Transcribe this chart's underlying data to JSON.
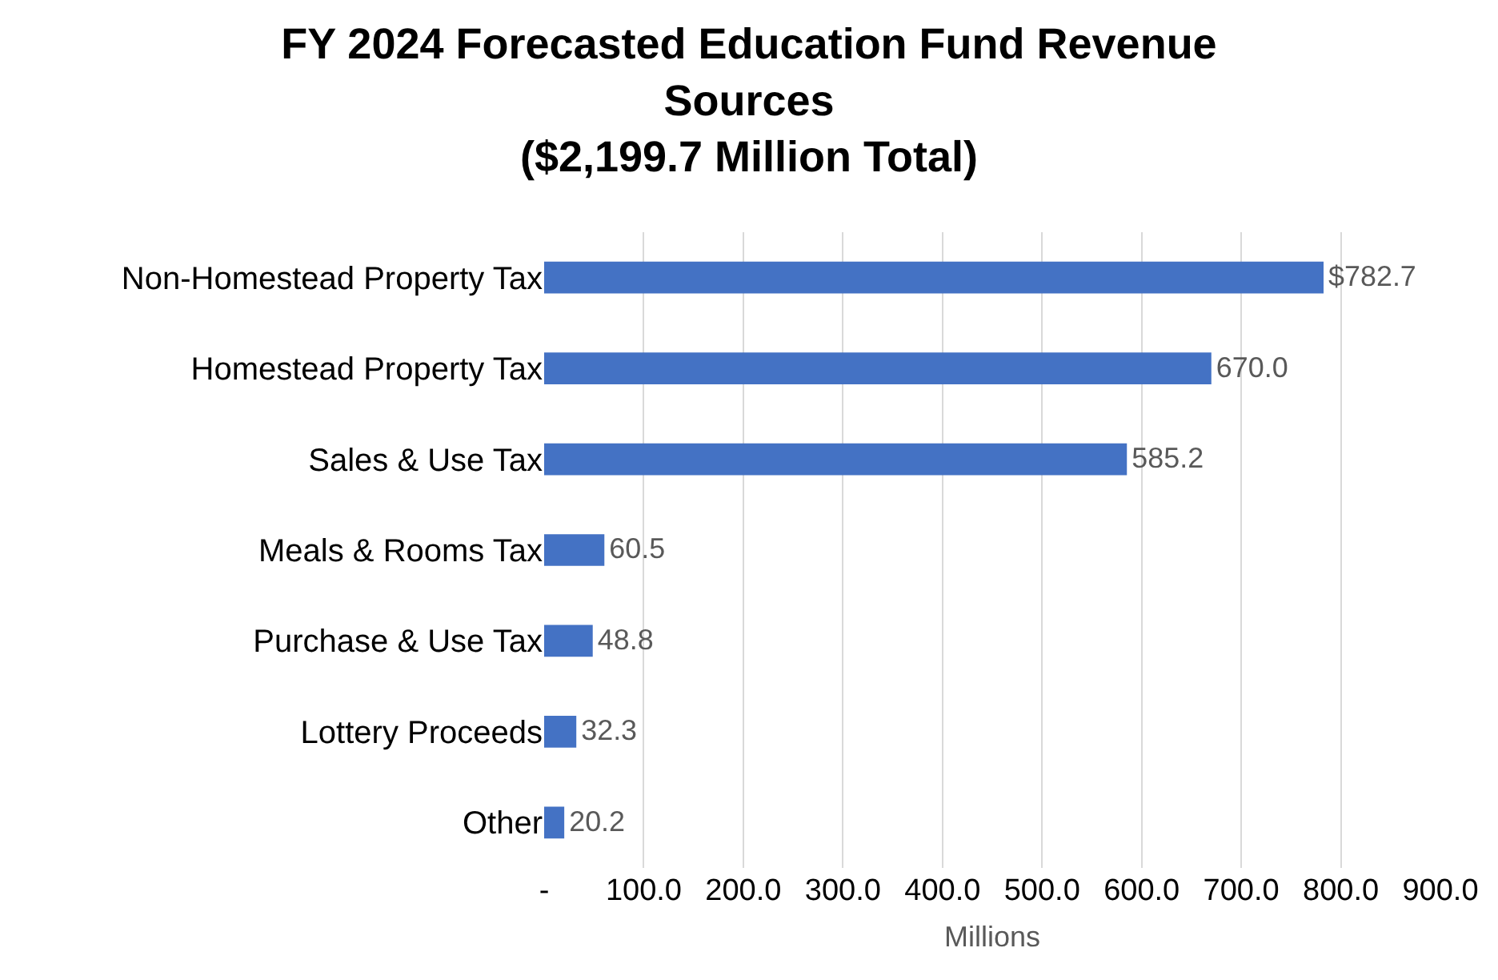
{
  "chart_data": {
    "type": "bar",
    "orientation": "horizontal",
    "title": "FY 2024 Forecasted Education Fund Revenue\nSources\n($2,199.7 Million Total)",
    "categories": [
      "Non-Homestead Property Tax",
      "Homestead Property Tax",
      "Sales & Use Tax",
      "Meals & Rooms Tax",
      "Purchase & Use Tax",
      "Lottery Proceeds",
      "Other"
    ],
    "values": [
      782.7,
      670.0,
      585.2,
      60.5,
      48.8,
      32.3,
      20.2
    ],
    "value_labels": [
      "$782.7",
      "670.0",
      "585.2",
      "60.5",
      "48.8",
      "32.3",
      "20.2"
    ],
    "color": "#4472c4",
    "xlabel": "Millions",
    "xlim": [
      0,
      900
    ],
    "xticks": [
      {
        "value": 0,
        "label": "-"
      },
      {
        "value": 100,
        "label": "100.0"
      },
      {
        "value": 200,
        "label": "200.0"
      },
      {
        "value": 300,
        "label": "300.0"
      },
      {
        "value": 400,
        "label": "400.0"
      },
      {
        "value": 500,
        "label": "500.0"
      },
      {
        "value": 600,
        "label": "600.0"
      },
      {
        "value": 700,
        "label": "700.0"
      },
      {
        "value": 800,
        "label": "800.0"
      },
      {
        "value": 900,
        "label": "900.0"
      }
    ],
    "grid": "x"
  }
}
